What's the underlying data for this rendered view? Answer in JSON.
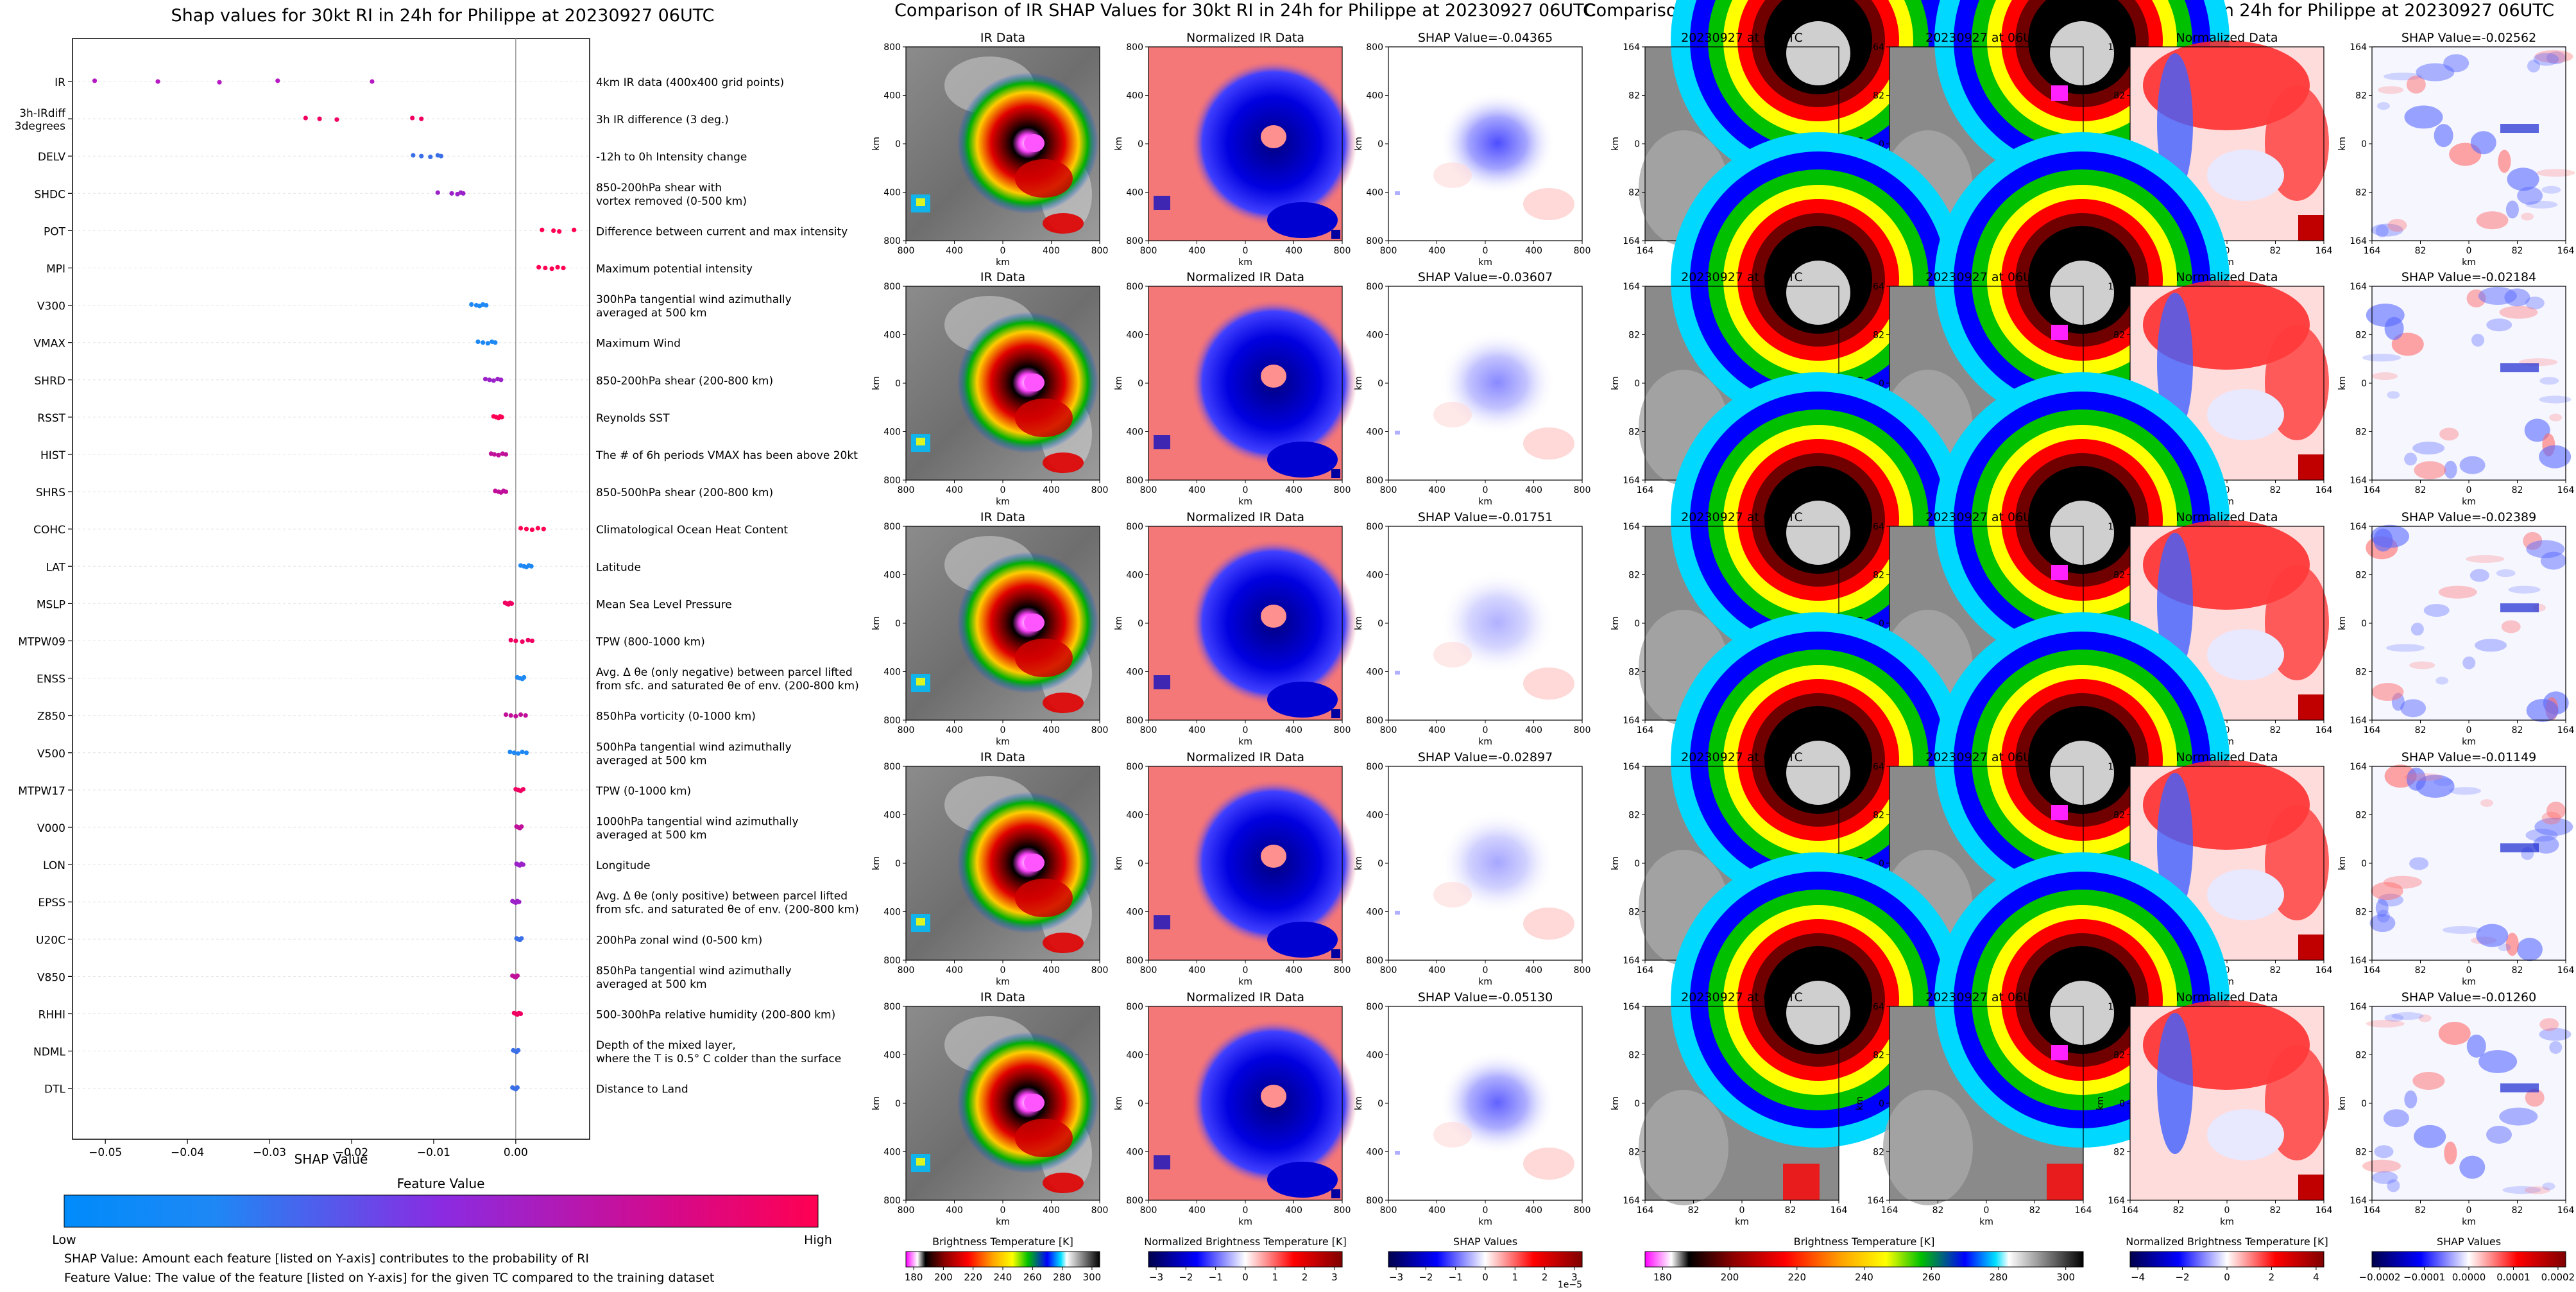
{
  "panel_a": {
    "title": "Shap values for 30kt RI in 24h for Philippe at 20230927 06UTC",
    "xlabel": "SHAP Value",
    "legend_title": "Feature Value",
    "legend_low": "Low",
    "legend_high": "High",
    "notes": [
      "SHAP Value: Amount each feature [listed on Y-axis] contributes to the probability of RI",
      "Feature Value: The value of the feature [listed on Y-axis] for the given TC compared to the training dataset"
    ]
  },
  "panel_b": {
    "title": "Comparison of IR SHAP Values for 30kt RI in 24h for Philippe at 20230927 06UTC",
    "col_titles": [
      "IR Data",
      "Normalized IR Data"
    ],
    "shap_titles": [
      "SHAP Value=-0.04365",
      "SHAP Value=-0.03607",
      "SHAP Value=-0.01751",
      "SHAP Value=-0.02897",
      "SHAP Value=-0.05130"
    ],
    "x_ticks": [
      "800",
      "400",
      "0",
      "400",
      "800"
    ],
    "y_ticks": [
      "800",
      "400",
      "0",
      "400",
      "800"
    ],
    "unit": "km",
    "colorbars": [
      {
        "label": "Brightness Temperature [K]",
        "ticks": [
          "180",
          "200",
          "220",
          "240",
          "260",
          "280",
          "300"
        ]
      },
      {
        "label": "Normalized Brightness Temperature [K]",
        "ticks": [
          "−3",
          "−2",
          "−1",
          "0",
          "1",
          "2",
          "3"
        ]
      },
      {
        "label": "SHAP Values",
        "ticks": [
          "−3",
          "−2",
          "−1",
          "0",
          "1",
          "2",
          "3"
        ],
        "offset": "1e−5"
      }
    ]
  },
  "panel_c": {
    "title": "Comparison of 3h IR difference within 3 degrees SHAP Values for 30kt RI in 24h for Philippe at 20230927 06UTC",
    "col_titles": [
      "20230927 at 03UTC",
      "20230927 at 06UTC",
      "Normalized Data"
    ],
    "shap_titles": [
      "SHAP Value=-0.02562",
      "SHAP Value=-0.02184",
      "SHAP Value=-0.02389",
      "SHAP Value=-0.01149",
      "SHAP Value=-0.01260"
    ],
    "x_ticks": [
      "164",
      "82",
      "0",
      "82",
      "164"
    ],
    "y_ticks": [
      "164",
      "82",
      "0",
      "82",
      "164"
    ],
    "unit": "km",
    "colorbars": [
      {
        "label": "Brightness Temperature [K]",
        "ticks": [
          "180",
          "200",
          "220",
          "240",
          "260",
          "280",
          "300"
        ]
      },
      {
        "label": "Normalized Brightness Temperature [K]",
        "ticks": [
          "−4",
          "−2",
          "0",
          "2",
          "4"
        ]
      },
      {
        "label": "SHAP Values",
        "ticks": [
          "−0.0002",
          "−0.0001",
          "0.0000",
          "0.0001",
          "0.0002"
        ]
      }
    ]
  },
  "colors": {
    "low": "#008bfb",
    "mid": "#8a2be2",
    "high": "#ff0052"
  },
  "chart_data": {
    "type": "scatter",
    "title": "Shap values for 30kt RI in 24h for Philippe at 20230927 06UTC",
    "xlabel": "SHAP Value",
    "ylabel": "",
    "xlim": [
      -0.054,
      0.009
    ],
    "x_ticks": [
      "−0.05",
      "−0.04",
      "−0.03",
      "−0.02",
      "−0.01",
      "0.00"
    ],
    "x_tick_values": [
      -0.05,
      -0.04,
      -0.03,
      -0.02,
      -0.01,
      0.0
    ],
    "features": [
      {
        "name": "IR",
        "desc": "4km IR data (400x400 grid points)",
        "points": [
          {
            "x": -0.0513,
            "c": "#b61ac3"
          },
          {
            "x": -0.0436,
            "c": "#b61ac3"
          },
          {
            "x": -0.0361,
            "c": "#b61ac3"
          },
          {
            "x": -0.029,
            "c": "#b61ac3"
          },
          {
            "x": -0.0175,
            "c": "#b61ac3"
          }
        ]
      },
      {
        "name": "3h-IRdiff\n3degrees",
        "desc": "3h IR difference (3 deg.)",
        "points": [
          {
            "x": -0.0256,
            "c": "#f00060"
          },
          {
            "x": -0.0239,
            "c": "#f00060"
          },
          {
            "x": -0.0218,
            "c": "#f00060"
          },
          {
            "x": -0.0126,
            "c": "#f00060"
          },
          {
            "x": -0.0115,
            "c": "#f00060"
          }
        ]
      },
      {
        "name": "DELV",
        "desc": "-12h to 0h Intensity change",
        "points": [
          {
            "x": -0.0125,
            "c": "#3a6fe8"
          },
          {
            "x": -0.0115,
            "c": "#3a6fe8"
          },
          {
            "x": -0.0104,
            "c": "#3a6fe8"
          },
          {
            "x": -0.0095,
            "c": "#3a6fe8"
          },
          {
            "x": -0.0091,
            "c": "#3a6fe8"
          }
        ]
      },
      {
        "name": "SHDC",
        "desc": "850-200hPa shear with\nvortex removed (0-500 km)",
        "points": [
          {
            "x": -0.0095,
            "c": "#9b22c8"
          },
          {
            "x": -0.0078,
            "c": "#9b22c8"
          },
          {
            "x": -0.0071,
            "c": "#9b22c8"
          },
          {
            "x": -0.0067,
            "c": "#9b22c8"
          },
          {
            "x": -0.0064,
            "c": "#9b22c8"
          }
        ]
      },
      {
        "name": "POT",
        "desc": "Difference between current and max intensity",
        "points": [
          {
            "x": 0.0032,
            "c": "#ff0052"
          },
          {
            "x": 0.0046,
            "c": "#ff0052"
          },
          {
            "x": 0.0053,
            "c": "#ff0052"
          },
          {
            "x": 0.0071,
            "c": "#ff0052"
          }
        ]
      },
      {
        "name": "MPI",
        "desc": "Maximum potential intensity",
        "points": [
          {
            "x": 0.0028,
            "c": "#ff0052"
          },
          {
            "x": 0.0036,
            "c": "#ff0052"
          },
          {
            "x": 0.0044,
            "c": "#ff0052"
          },
          {
            "x": 0.0051,
            "c": "#ff0052"
          },
          {
            "x": 0.0058,
            "c": "#ff0052"
          }
        ]
      },
      {
        "name": "V300",
        "desc": "300hPa tangential wind azimuthally\naveraged at 500 km",
        "points": [
          {
            "x": -0.0054,
            "c": "#1e88f5"
          },
          {
            "x": -0.0048,
            "c": "#1e88f5"
          },
          {
            "x": -0.0044,
            "c": "#1e88f5"
          },
          {
            "x": -0.004,
            "c": "#1e88f5"
          },
          {
            "x": -0.0036,
            "c": "#1e88f5"
          }
        ]
      },
      {
        "name": "VMAX",
        "desc": "Maximum Wind",
        "points": [
          {
            "x": -0.0046,
            "c": "#1e88f5"
          },
          {
            "x": -0.004,
            "c": "#1e88f5"
          },
          {
            "x": -0.0034,
            "c": "#1e88f5"
          },
          {
            "x": -0.0029,
            "c": "#1e88f5"
          },
          {
            "x": -0.0025,
            "c": "#1e88f5"
          }
        ]
      },
      {
        "name": "SHRD",
        "desc": "850-200hPa shear (200-800 km)",
        "points": [
          {
            "x": -0.0037,
            "c": "#9b22c8"
          },
          {
            "x": -0.0032,
            "c": "#9b22c8"
          },
          {
            "x": -0.0027,
            "c": "#9b22c8"
          },
          {
            "x": -0.0022,
            "c": "#9b22c8"
          },
          {
            "x": -0.0018,
            "c": "#9b22c8"
          }
        ]
      },
      {
        "name": "RSST",
        "desc": "Reynolds SST",
        "points": [
          {
            "x": -0.0027,
            "c": "#ff0052"
          },
          {
            "x": -0.0024,
            "c": "#ff0052"
          },
          {
            "x": -0.0021,
            "c": "#ff0052"
          },
          {
            "x": -0.0019,
            "c": "#ff0052"
          },
          {
            "x": -0.0017,
            "c": "#ff0052"
          }
        ]
      },
      {
        "name": "HIST",
        "desc": "The # of 6h periods VMAX has been above 20kt",
        "points": [
          {
            "x": -0.003,
            "c": "#c0109a"
          },
          {
            "x": -0.0026,
            "c": "#c0109a"
          },
          {
            "x": -0.0021,
            "c": "#c0109a"
          },
          {
            "x": -0.0016,
            "c": "#c0109a"
          },
          {
            "x": -0.0012,
            "c": "#c0109a"
          }
        ]
      },
      {
        "name": "SHRS",
        "desc": "850-500hPa shear (200-800 km)",
        "points": [
          {
            "x": -0.0025,
            "c": "#c0109a"
          },
          {
            "x": -0.0021,
            "c": "#c0109a"
          },
          {
            "x": -0.0018,
            "c": "#c0109a"
          },
          {
            "x": -0.0015,
            "c": "#c0109a"
          },
          {
            "x": -0.0012,
            "c": "#c0109a"
          }
        ]
      },
      {
        "name": "COHC",
        "desc": "Climatological Ocean Heat Content",
        "points": [
          {
            "x": 0.0006,
            "c": "#ff0052"
          },
          {
            "x": 0.0013,
            "c": "#ff0052"
          },
          {
            "x": 0.002,
            "c": "#ff0052"
          },
          {
            "x": 0.0027,
            "c": "#ff0052"
          },
          {
            "x": 0.0034,
            "c": "#ff0052"
          }
        ]
      },
      {
        "name": "LAT",
        "desc": "Latitude",
        "points": [
          {
            "x": 0.0006,
            "c": "#1e88f5"
          },
          {
            "x": 0.001,
            "c": "#1e88f5"
          },
          {
            "x": 0.0013,
            "c": "#1e88f5"
          },
          {
            "x": 0.0016,
            "c": "#1e88f5"
          },
          {
            "x": 0.0019,
            "c": "#1e88f5"
          }
        ]
      },
      {
        "name": "MSLP",
        "desc": "Mean Sea Level Pressure",
        "points": [
          {
            "x": -0.0013,
            "c": "#f00060"
          },
          {
            "x": -0.0011,
            "c": "#f00060"
          },
          {
            "x": -0.0009,
            "c": "#f00060"
          },
          {
            "x": -0.0007,
            "c": "#f00060"
          },
          {
            "x": -0.0005,
            "c": "#f00060"
          }
        ]
      },
      {
        "name": "MTPW09",
        "desc": "TPW (800-1000 km)",
        "points": [
          {
            "x": -0.0006,
            "c": "#f00060"
          },
          {
            "x": 0.0,
            "c": "#f00060"
          },
          {
            "x": 0.0008,
            "c": "#f00060"
          },
          {
            "x": 0.0015,
            "c": "#f00060"
          },
          {
            "x": 0.002,
            "c": "#f00060"
          }
        ]
      },
      {
        "name": "ENSS",
        "desc": "Avg. Δ θe (only negative) between parcel lifted\nfrom sfc. and saturated θe of env. (200-800 km)",
        "points": [
          {
            "x": 0.0002,
            "c": "#1e88f5"
          },
          {
            "x": 0.0005,
            "c": "#1e88f5"
          },
          {
            "x": 0.0008,
            "c": "#1e88f5"
          },
          {
            "x": 0.001,
            "c": "#1e88f5"
          }
        ]
      },
      {
        "name": "Z850",
        "desc": "850hPa vorticity (0-1000 km)",
        "points": [
          {
            "x": -0.0012,
            "c": "#c0109a"
          },
          {
            "x": -0.0006,
            "c": "#c0109a"
          },
          {
            "x": 0.0,
            "c": "#c0109a"
          },
          {
            "x": 0.0006,
            "c": "#c0109a"
          },
          {
            "x": 0.0012,
            "c": "#c0109a"
          }
        ]
      },
      {
        "name": "V500",
        "desc": "500hPa tangential wind azimuthally\naveraged at 500 km",
        "points": [
          {
            "x": -0.0007,
            "c": "#1e88f5"
          },
          {
            "x": -0.0002,
            "c": "#1e88f5"
          },
          {
            "x": 0.0003,
            "c": "#1e88f5"
          },
          {
            "x": 0.0008,
            "c": "#1e88f5"
          },
          {
            "x": 0.0013,
            "c": "#1e88f5"
          }
        ]
      },
      {
        "name": "MTPW17",
        "desc": "TPW (0-1000 km)",
        "points": [
          {
            "x": 0.0,
            "c": "#f00060"
          },
          {
            "x": 0.0003,
            "c": "#f00060"
          },
          {
            "x": 0.0006,
            "c": "#f00060"
          },
          {
            "x": 0.0009,
            "c": "#f00060"
          }
        ]
      },
      {
        "name": "V000",
        "desc": "1000hPa tangential wind azimuthally\naveraged at 500 km",
        "points": [
          {
            "x": 0.0001,
            "c": "#c0109a"
          },
          {
            "x": 0.0003,
            "c": "#c0109a"
          },
          {
            "x": 0.0005,
            "c": "#c0109a"
          },
          {
            "x": 0.0007,
            "c": "#c0109a"
          }
        ]
      },
      {
        "name": "LON",
        "desc": "Longitude",
        "points": [
          {
            "x": 0.0001,
            "c": "#9b22c8"
          },
          {
            "x": 0.0003,
            "c": "#9b22c8"
          },
          {
            "x": 0.0005,
            "c": "#9b22c8"
          },
          {
            "x": 0.0007,
            "c": "#9b22c8"
          },
          {
            "x": 0.0009,
            "c": "#9b22c8"
          }
        ]
      },
      {
        "name": "EPSS",
        "desc": "Avg. Δ θe (only positive) between parcel lifted\nfrom sfc. and saturated θe of env. (200-800 km)",
        "points": [
          {
            "x": -0.0004,
            "c": "#9b22c8"
          },
          {
            "x": -0.0002,
            "c": "#9b22c8"
          },
          {
            "x": 0.0,
            "c": "#9b22c8"
          },
          {
            "x": 0.0002,
            "c": "#9b22c8"
          },
          {
            "x": 0.0004,
            "c": "#9b22c8"
          }
        ]
      },
      {
        "name": "U20C",
        "desc": "200hPa zonal wind (0-500 km)",
        "points": [
          {
            "x": 0.0001,
            "c": "#3a6fe8"
          },
          {
            "x": 0.0003,
            "c": "#3a6fe8"
          },
          {
            "x": 0.0005,
            "c": "#3a6fe8"
          },
          {
            "x": 0.0007,
            "c": "#3a6fe8"
          }
        ]
      },
      {
        "name": "V850",
        "desc": "850hPa tangential wind azimuthally\naveraged at 500 km",
        "points": [
          {
            "x": -0.0004,
            "c": "#c0109a"
          },
          {
            "x": -0.0002,
            "c": "#c0109a"
          },
          {
            "x": 0.0,
            "c": "#c0109a"
          },
          {
            "x": 0.0002,
            "c": "#c0109a"
          }
        ]
      },
      {
        "name": "RHHI",
        "desc": "500-300hPa relative humidity (200-800 km)",
        "points": [
          {
            "x": -0.0002,
            "c": "#f00060"
          },
          {
            "x": 0.0,
            "c": "#f00060"
          },
          {
            "x": 0.0002,
            "c": "#f00060"
          },
          {
            "x": 0.0004,
            "c": "#f00060"
          },
          {
            "x": 0.0006,
            "c": "#f00060"
          }
        ]
      },
      {
        "name": "NDML",
        "desc": "Depth of the mixed layer,\nwhere the T is 0.5° C colder than the surface",
        "points": [
          {
            "x": -0.0003,
            "c": "#3a6fe8"
          },
          {
            "x": -0.0001,
            "c": "#3a6fe8"
          },
          {
            "x": 0.0001,
            "c": "#3a6fe8"
          },
          {
            "x": 0.0003,
            "c": "#3a6fe8"
          }
        ]
      },
      {
        "name": "DTL",
        "desc": "Distance to Land",
        "points": [
          {
            "x": -0.0004,
            "c": "#3a6fe8"
          },
          {
            "x": -0.0002,
            "c": "#3a6fe8"
          },
          {
            "x": 0.0,
            "c": "#3a6fe8"
          },
          {
            "x": 0.0002,
            "c": "#3a6fe8"
          }
        ]
      }
    ]
  }
}
